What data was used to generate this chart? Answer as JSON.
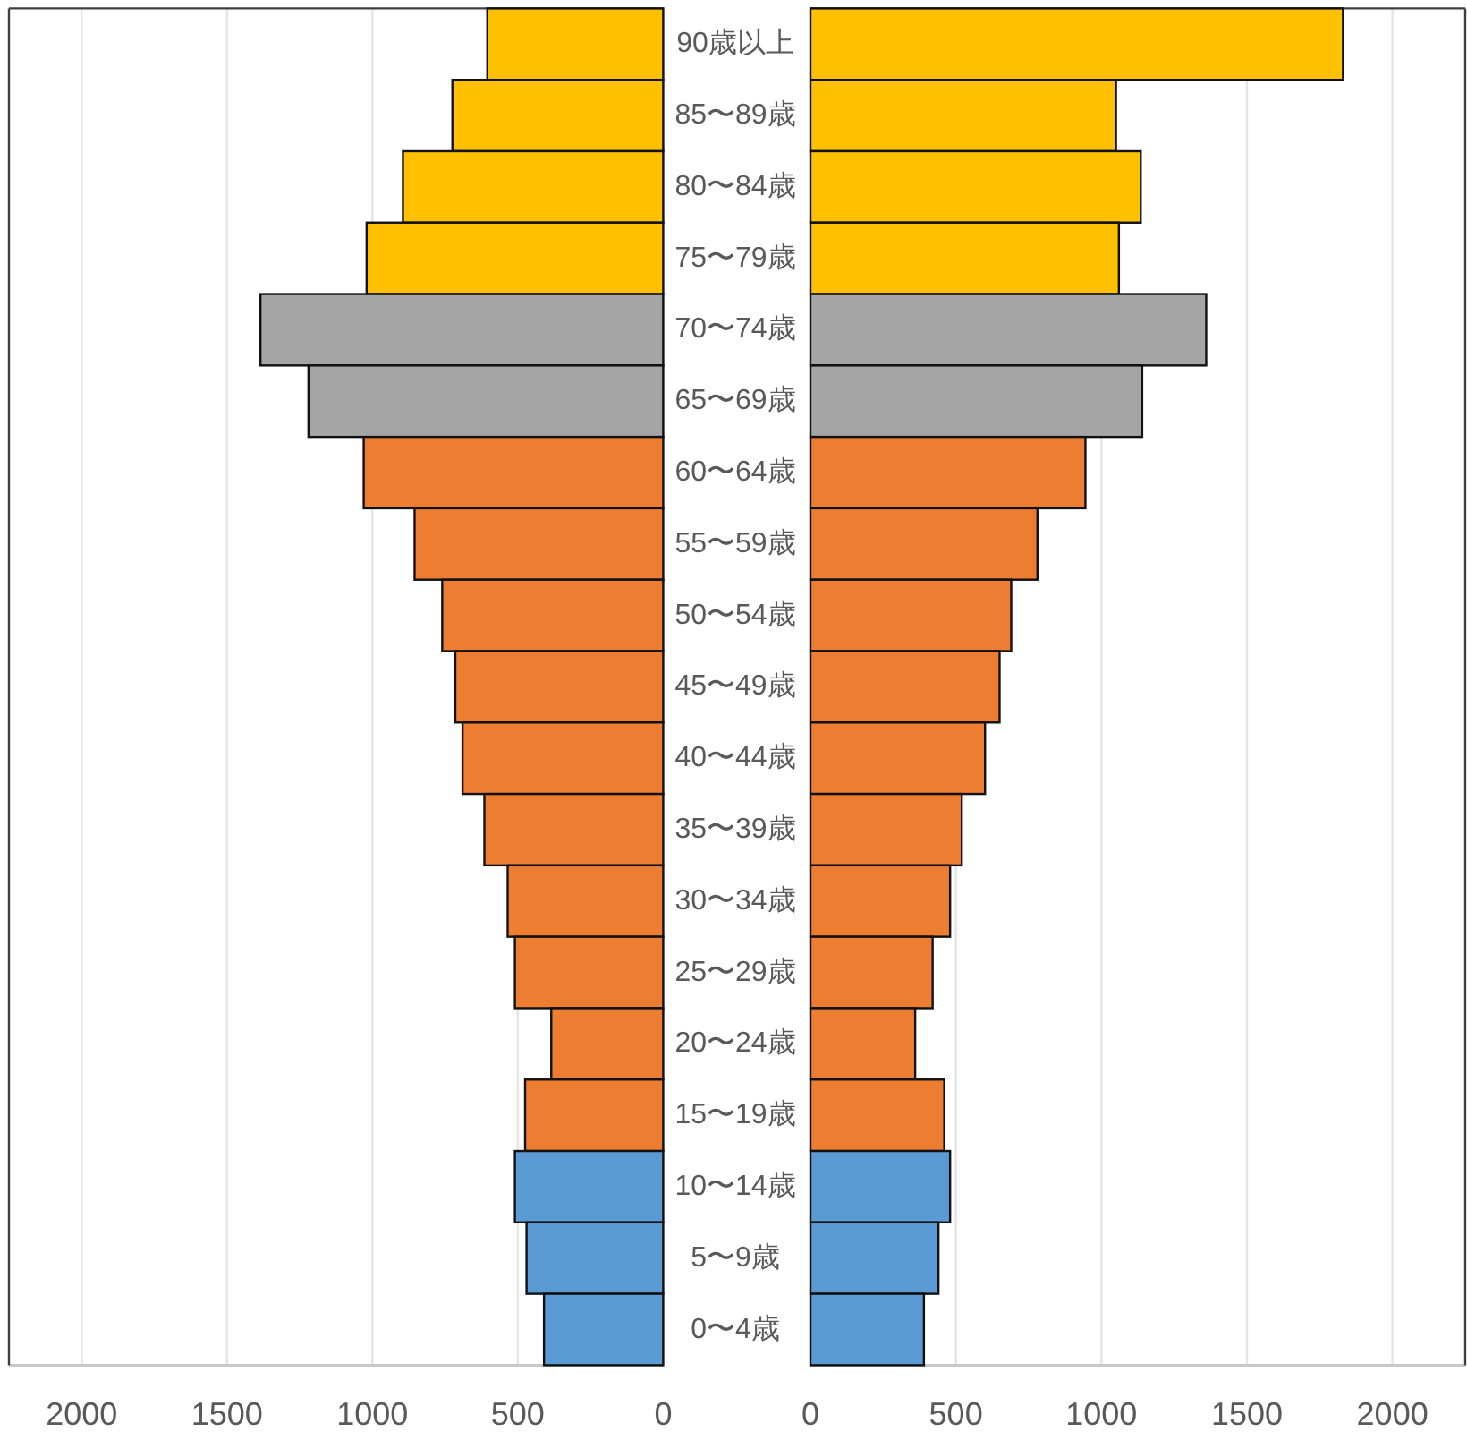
{
  "chart_data": [
    {
      "type": "bar",
      "orientation": "horizontal",
      "categories": [
        "90歳以上",
        "85〜89歳",
        "80〜84歳",
        "75〜79歳",
        "70〜74歳",
        "65〜69歳",
        "60〜64歳",
        "55〜59歳",
        "50〜54歳",
        "45〜49歳",
        "40〜44歳",
        "35〜39歳",
        "30〜34歳",
        "25〜29歳",
        "20〜24歳",
        "15〜19歳",
        "10〜14歳",
        "5〜9歳",
        "0〜4歳"
      ],
      "values": [
        605,
        725,
        895,
        1020,
        1385,
        1220,
        1030,
        855,
        760,
        715,
        690,
        615,
        535,
        510,
        385,
        475,
        510,
        470,
        410
      ],
      "colors": [
        "#ffc000",
        "#ffc000",
        "#ffc000",
        "#ffc000",
        "#a5a5a5",
        "#a5a5a5",
        "#ed7d31",
        "#ed7d31",
        "#ed7d31",
        "#ed7d31",
        "#ed7d31",
        "#ed7d31",
        "#ed7d31",
        "#ed7d31",
        "#ed7d31",
        "#ed7d31",
        "#5b9bd5",
        "#5b9bd5",
        "#5b9bd5"
      ],
      "xlim": [
        2250,
        0
      ],
      "xticks": [
        2000,
        1500,
        1000,
        500,
        0
      ],
      "grid": "x"
    },
    {
      "type": "bar",
      "orientation": "horizontal",
      "values": [
        1830,
        1050,
        1135,
        1060,
        1360,
        1140,
        945,
        780,
        690,
        650,
        600,
        520,
        480,
        420,
        360,
        460,
        480,
        440,
        390
      ],
      "colors": [
        "#ffc000",
        "#ffc000",
        "#ffc000",
        "#ffc000",
        "#a5a5a5",
        "#a5a5a5",
        "#ed7d31",
        "#ed7d31",
        "#ed7d31",
        "#ed7d31",
        "#ed7d31",
        "#ed7d31",
        "#ed7d31",
        "#ed7d31",
        "#ed7d31",
        "#ed7d31",
        "#5b9bd5",
        "#5b9bd5",
        "#5b9bd5"
      ],
      "xlim": [
        0,
        2250
      ],
      "xticks": [
        0,
        500,
        1000,
        1500,
        2000
      ],
      "grid": "x",
      "tick_labels": "x"
    }
  ]
}
